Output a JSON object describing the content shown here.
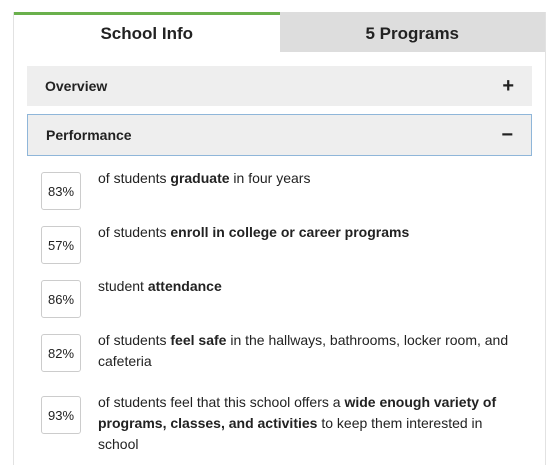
{
  "tabs": [
    {
      "label": "School Info",
      "active": true
    },
    {
      "label": "5 Programs",
      "active": false
    }
  ],
  "accordion": {
    "overview": {
      "label": "Overview",
      "icon": "+"
    },
    "performance": {
      "label": "Performance",
      "icon": "−"
    }
  },
  "stats": [
    {
      "percent": "83%",
      "pre": "of students ",
      "bold": "graduate",
      "post": " in four years"
    },
    {
      "percent": "57%",
      "pre": "of students ",
      "bold": "enroll in college or career programs",
      "post": ""
    },
    {
      "percent": "86%",
      "pre": "student ",
      "bold": "attendance",
      "post": ""
    },
    {
      "percent": "82%",
      "pre": "of students ",
      "bold": "feel safe",
      "post": " in the hallways, bathrooms, locker room, and cafeteria"
    },
    {
      "percent": "93%",
      "pre": "of students feel that this school offers a ",
      "bold": "wide enough variety of programs, classes, and activities",
      "post": " to keep them interested in school"
    }
  ],
  "colors": {
    "active_tab_accent": "#6ab04c",
    "inactive_tab_bg": "#dddddd",
    "accordion_bg": "#eeeeee",
    "focus_border": "#8fb6d9"
  }
}
